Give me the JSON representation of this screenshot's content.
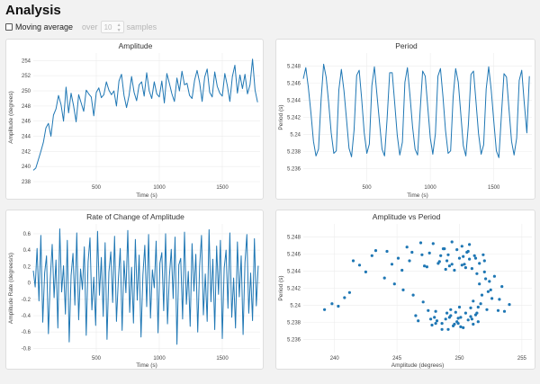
{
  "page": {
    "title": "Analysis",
    "moving_average_label": "Moving average",
    "over_label": "over",
    "window_value": "10",
    "samples_label": "samples"
  },
  "colors": {
    "series": "#1f77b4",
    "grid": "#ececec"
  },
  "chart_data": [
    {
      "id": "amplitude",
      "type": "line",
      "title": "Amplitude",
      "xlabel": "Time (s)",
      "ylabel": "Amplitude (degrees)",
      "xlim": [
        0,
        1800
      ],
      "ylim": [
        238,
        255
      ],
      "xticks": [
        500,
        1000,
        1500
      ],
      "yticks": [
        238,
        240,
        242,
        244,
        246,
        248,
        250,
        252,
        254
      ],
      "series": [
        {
          "x": [
            0,
            20,
            40,
            60,
            80,
            100,
            120,
            140,
            160,
            180,
            200,
            220,
            240,
            260,
            280,
            300,
            320,
            340,
            360,
            380,
            400,
            420,
            440,
            460,
            480,
            500,
            520,
            540,
            560,
            580,
            600,
            620,
            640,
            660,
            680,
            700,
            720,
            740,
            760,
            780,
            800,
            820,
            840,
            860,
            880,
            900,
            920,
            940,
            960,
            980,
            1000,
            1020,
            1040,
            1060,
            1080,
            1100,
            1120,
            1140,
            1160,
            1180,
            1200,
            1220,
            1240,
            1260,
            1280,
            1300,
            1320,
            1340,
            1360,
            1380,
            1400,
            1420,
            1440,
            1460,
            1480,
            1500,
            1520,
            1540,
            1560,
            1580,
            1600,
            1620,
            1640,
            1660,
            1680,
            1700,
            1720,
            1740,
            1760,
            1780
          ],
          "y": [
            239.5,
            239.8,
            240.9,
            242.0,
            243.2,
            245.1,
            245.7,
            244.0,
            246.8,
            247.6,
            249.4,
            248.2,
            246.0,
            250.5,
            247.1,
            249.7,
            248.0,
            245.9,
            249.5,
            248.4,
            247.3,
            250.1,
            249.6,
            249.2,
            246.7,
            249.8,
            250.4,
            249.1,
            249.5,
            251.2,
            250.1,
            249.5,
            250.0,
            248.0,
            251.3,
            252.2,
            249.4,
            247.8,
            249.4,
            251.9,
            249.8,
            248.7,
            250.8,
            251.2,
            249.3,
            252.4,
            250.0,
            249.0,
            251.2,
            249.6,
            249.2,
            251.3,
            248.4,
            252.3,
            251.0,
            249.6,
            248.6,
            251.7,
            250.0,
            252.6,
            250.8,
            251.0,
            249.4,
            249.0,
            251.4,
            252.7,
            251.1,
            248.6,
            251.8,
            252.9,
            249.8,
            249.2,
            252.5,
            250.6,
            249.7,
            249.3,
            252.3,
            250.7,
            248.6,
            251.9,
            253.4,
            249.7,
            252.1,
            250.3,
            252.2,
            249.6,
            250.8,
            254.2,
            250.1,
            248.5
          ]
        }
      ]
    },
    {
      "id": "period",
      "type": "line",
      "title": "Period",
      "xlabel": "Time (s)",
      "ylabel": "Period (s)",
      "xlim": [
        0,
        1800
      ],
      "ylim": [
        5.2345,
        5.2495
      ],
      "xticks": [
        500,
        1000,
        1500
      ],
      "yticks": [
        5.236,
        5.238,
        5.24,
        5.242,
        5.244,
        5.246,
        5.248
      ],
      "series": [
        {
          "x": [
            0,
            20,
            40,
            60,
            80,
            100,
            120,
            140,
            160,
            180,
            200,
            220,
            240,
            260,
            280,
            300,
            320,
            340,
            360,
            380,
            400,
            420,
            440,
            460,
            480,
            500,
            520,
            540,
            560,
            580,
            600,
            620,
            640,
            660,
            680,
            700,
            720,
            740,
            760,
            780,
            800,
            820,
            840,
            860,
            880,
            900,
            920,
            940,
            960,
            980,
            1000,
            1020,
            1040,
            1060,
            1080,
            1100,
            1120,
            1140,
            1160,
            1180,
            1200,
            1220,
            1240,
            1260,
            1280,
            1300,
            1320,
            1340,
            1360,
            1380,
            1400,
            1420,
            1440,
            1460,
            1480,
            1500,
            1520,
            1540,
            1560,
            1580,
            1600,
            1620,
            1640,
            1660,
            1680,
            1700,
            1720,
            1740,
            1760,
            1780
          ],
          "y": [
            5.2465,
            5.2478,
            5.2455,
            5.2425,
            5.2392,
            5.2375,
            5.2383,
            5.2441,
            5.2482,
            5.2467,
            5.2437,
            5.2402,
            5.2378,
            5.2381,
            5.2452,
            5.2476,
            5.2451,
            5.2418,
            5.2384,
            5.2374,
            5.2405,
            5.2469,
            5.2475,
            5.2441,
            5.2402,
            5.2378,
            5.2389,
            5.2457,
            5.2479,
            5.2447,
            5.2414,
            5.2383,
            5.2375,
            5.2418,
            5.2472,
            5.2472,
            5.2436,
            5.2399,
            5.2376,
            5.2391,
            5.2461,
            5.2478,
            5.2446,
            5.2409,
            5.2383,
            5.2376,
            5.2427,
            5.2474,
            5.2468,
            5.2432,
            5.2396,
            5.2377,
            5.2401,
            5.2468,
            5.2477,
            5.2444,
            5.2405,
            5.2378,
            5.2381,
            5.2444,
            5.2477,
            5.2461,
            5.2424,
            5.2387,
            5.2375,
            5.2411,
            5.247,
            5.2474,
            5.2438,
            5.2401,
            5.2377,
            5.2388,
            5.2453,
            5.2479,
            5.2452,
            5.2415,
            5.2381,
            5.2373,
            5.2422,
            5.2471,
            5.2467,
            5.2429,
            5.2392,
            5.2376,
            5.2396,
            5.2463,
            5.2475,
            5.2437,
            5.2402,
            5.2468
          ]
        }
      ]
    },
    {
      "id": "rate",
      "type": "line",
      "title": "Rate of Change of Amplitude",
      "xlabel": "Time (s)",
      "ylabel": "Amplitude Rate (degrees/s)",
      "xlim": [
        0,
        1800
      ],
      "ylim": [
        -0.85,
        0.72
      ],
      "xticks": [
        500,
        1000,
        1500
      ],
      "yticks": [
        -0.8,
        -0.6,
        -0.4,
        -0.2,
        0,
        0.2,
        0.4,
        0.6
      ],
      "series": [
        {
          "x": [
            0,
            15,
            30,
            45,
            60,
            75,
            90,
            105,
            120,
            135,
            150,
            165,
            180,
            195,
            210,
            225,
            240,
            255,
            270,
            285,
            300,
            315,
            330,
            345,
            360,
            375,
            390,
            405,
            420,
            435,
            450,
            465,
            480,
            495,
            510,
            525,
            540,
            555,
            570,
            585,
            600,
            615,
            630,
            645,
            660,
            675,
            690,
            705,
            720,
            735,
            750,
            765,
            780,
            795,
            810,
            825,
            840,
            855,
            870,
            885,
            900,
            915,
            930,
            945,
            960,
            975,
            990,
            1005,
            1020,
            1035,
            1050,
            1065,
            1080,
            1095,
            1110,
            1125,
            1140,
            1155,
            1170,
            1185,
            1200,
            1215,
            1230,
            1245,
            1260,
            1275,
            1290,
            1305,
            1320,
            1335,
            1350,
            1365,
            1380,
            1395,
            1410,
            1425,
            1440,
            1455,
            1470,
            1485,
            1500,
            1515,
            1530,
            1545,
            1560,
            1575,
            1590,
            1605,
            1620,
            1635,
            1650,
            1665,
            1680,
            1695,
            1710,
            1725,
            1740,
            1755,
            1770,
            1785
          ],
          "y": [
            0.15,
            -0.05,
            0.42,
            -0.22,
            0.58,
            -0.48,
            0.12,
            0.33,
            -0.62,
            0.05,
            0.47,
            -0.18,
            0.28,
            -0.55,
            0.66,
            -0.11,
            0.21,
            -0.38,
            0.52,
            -0.72,
            0.09,
            0.36,
            -0.27,
            0.61,
            -0.45,
            0.17,
            -0.08,
            0.44,
            -0.64,
            0.26,
            0.55,
            -0.33,
            0.07,
            -0.52,
            0.63,
            -0.15,
            0.31,
            -0.41,
            0.49,
            -0.69,
            0.13,
            0.38,
            -0.24,
            0.57,
            -0.47,
            0.04,
            0.42,
            -0.58,
            0.27,
            -0.12,
            0.64,
            -0.36,
            0.19,
            -0.49,
            0.53,
            -0.21,
            0.34,
            -0.66,
            0.1,
            0.46,
            -0.29,
            0.59,
            -0.43,
            0.16,
            -0.06,
            0.51,
            -0.61,
            0.24,
            0.37,
            -0.34,
            0.6,
            -0.5,
            0.08,
            0.41,
            -0.19,
            0.56,
            -0.75,
            0.22,
            0.3,
            -0.44,
            0.62,
            -0.26,
            0.14,
            -0.53,
            0.48,
            -0.1,
            0.35,
            -0.6,
            0.2,
            0.58,
            -0.39,
            0.11,
            -0.47,
            0.65,
            -0.23,
            0.29,
            -0.57,
            0.45,
            -0.14,
            0.52,
            -0.68,
            0.18,
            0.4,
            -0.31,
            0.61,
            -0.42,
            0.06,
            -0.55,
            0.5,
            -0.17,
            0.33,
            -0.63,
            0.25,
            0.59,
            -0.37,
            0.12,
            -0.46,
            0.54,
            -0.28,
            0.21
          ]
        }
      ]
    },
    {
      "id": "amp_vs_period",
      "type": "scatter",
      "title": "Amplitude vs Period",
      "xlabel": "Amplitude (degrees)",
      "ylabel": "Period (s)",
      "xlim": [
        237.5,
        255.8
      ],
      "ylim": [
        5.2345,
        5.2495
      ],
      "xticks": [
        240,
        245,
        250,
        255
      ],
      "yticks": [
        5.236,
        5.238,
        5.24,
        5.242,
        5.244,
        5.246,
        5.248
      ],
      "series": [
        {
          "x": [
            239.2,
            239.8,
            240.3,
            241.2,
            242.0,
            243.0,
            244.2,
            244.6,
            245.1,
            245.4,
            246.0,
            246.3,
            246.7,
            247.1,
            247.4,
            247.6,
            247.9,
            248.1,
            248.3,
            248.5,
            248.6,
            248.8,
            248.9,
            249.0,
            249.1,
            249.2,
            249.3,
            249.4,
            249.5,
            249.6,
            249.7,
            249.8,
            249.9,
            250.0,
            250.1,
            250.2,
            250.3,
            250.4,
            250.5,
            250.6,
            250.7,
            250.8,
            250.9,
            251.0,
            251.1,
            251.2,
            251.3,
            251.4,
            251.5,
            251.6,
            251.8,
            252.0,
            252.2,
            252.5,
            252.8,
            253.2,
            253.6,
            254.0,
            241.5,
            243.3,
            244.8,
            246.5,
            247.0,
            247.8,
            248.2,
            248.7,
            249.0,
            249.4,
            249.8,
            250.1,
            250.5,
            250.9,
            251.3,
            251.7,
            252.1,
            252.6,
            253.1,
            245.8,
            246.9,
            248.0,
            248.9,
            249.6,
            250.3,
            251.0,
            251.6,
            252.3,
            247.5,
            248.4,
            249.2,
            250.0,
            250.7,
            251.4,
            252.0,
            244.0,
            245.5,
            247.2,
            248.1,
            249.1,
            249.9,
            250.8,
            251.5,
            252.4,
            253.4,
            240.8,
            242.5,
            246.2,
            247.7,
            248.6,
            249.3,
            250.2,
            251.1,
            251.9
          ],
          "y": [
            5.2395,
            5.2402,
            5.2399,
            5.2415,
            5.2447,
            5.2458,
            5.2463,
            5.2448,
            5.2455,
            5.2441,
            5.2452,
            5.2412,
            5.2382,
            5.2404,
            5.2445,
            5.2461,
            5.2472,
            5.2393,
            5.2449,
            5.2458,
            5.2379,
            5.2466,
            5.2384,
            5.2452,
            5.2372,
            5.2446,
            5.2388,
            5.2474,
            5.2376,
            5.2441,
            5.2392,
            5.2465,
            5.2379,
            5.2455,
            5.2386,
            5.2469,
            5.2374,
            5.2448,
            5.2391,
            5.2462,
            5.2383,
            5.2454,
            5.2397,
            5.2443,
            5.2405,
            5.2458,
            5.2389,
            5.2437,
            5.2398,
            5.2425,
            5.2412,
            5.2452,
            5.2395,
            5.2418,
            5.2434,
            5.2407,
            5.2393,
            5.2401,
            5.2452,
            5.2464,
            5.2425,
            5.2388,
            5.2459,
            5.2377,
            5.2382,
            5.2466,
            5.2391,
            5.2448,
            5.2381,
            5.2375,
            5.2444,
            5.2387,
            5.2455,
            5.2402,
            5.2431,
            5.2408,
            5.2394,
            5.2468,
            5.2473,
            5.2386,
            5.2442,
            5.2378,
            5.2457,
            5.2384,
            5.2449,
            5.2416,
            5.2394,
            5.2451,
            5.2386,
            5.2398,
            5.2463,
            5.2391,
            5.2439,
            5.2432,
            5.2418,
            5.2446,
            5.2379,
            5.2459,
            5.2385,
            5.2471,
            5.2381,
            5.2428,
            5.2422,
            5.2409,
            5.2439,
            5.2462,
            5.2384,
            5.2372,
            5.2395,
            5.2447,
            5.2378,
            5.2459
          ]
        }
      ]
    }
  ]
}
